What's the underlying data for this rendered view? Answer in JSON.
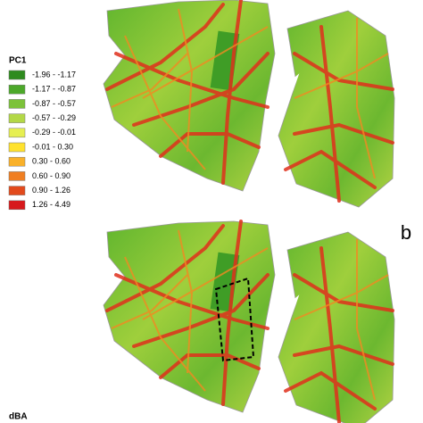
{
  "legend": {
    "title": "PC1",
    "items": [
      {
        "label": "-1.96 - -1.17",
        "color": "#2e8b1e"
      },
      {
        "label": "-1.17 - -0.87",
        "color": "#4ca82a"
      },
      {
        "label": "-0.87 - -0.57",
        "color": "#7cc23a"
      },
      {
        "label": "-0.57 - -0.29",
        "color": "#b3d847"
      },
      {
        "label": "-0.29 - -0.01",
        "color": "#e6ef52"
      },
      {
        "label": "-0.01 - 0.30",
        "color": "#ffe22e"
      },
      {
        "label": "0.30 - 0.60",
        "color": "#f9b12a"
      },
      {
        "label": "0.60 - 0.90",
        "color": "#f07f22"
      },
      {
        "label": "0.90 - 1.26",
        "color": "#e24a1c"
      },
      {
        "label": "1.26 - 4.49",
        "color": "#d7191c"
      }
    ]
  },
  "panel_label": "b",
  "legend2_title": "dBA"
}
